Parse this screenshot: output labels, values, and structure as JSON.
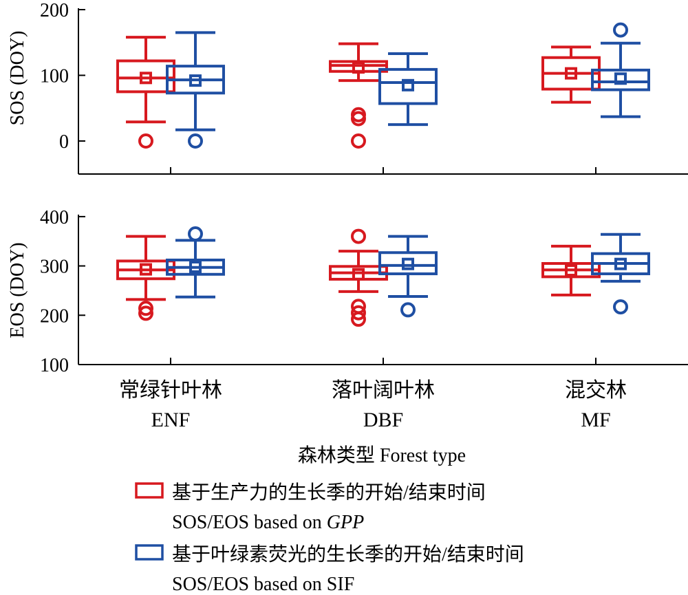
{
  "chart_data": {
    "type": "boxplot",
    "categories": [
      {
        "zh": "常绿针叶林",
        "en": "ENF"
      },
      {
        "zh": "落叶阔叶林",
        "en": "DBF"
      },
      {
        "zh": "混交林",
        "en": "MF"
      }
    ],
    "xlabel": "森林类型 Forest type",
    "colors": {
      "GPP": "#d7191f",
      "SIF": "#1f4fa3"
    },
    "panels": [
      {
        "ylabel": "SOS (DOY)",
        "ylim": [
          -50,
          200
        ],
        "yticks": [
          0,
          100,
          200
        ],
        "series": [
          {
            "key": "GPP",
            "boxes": [
              {
                "whisker_low": 29,
                "q1": 75,
                "median": 96,
                "q3": 122,
                "whisker_high": 158,
                "mean": 96,
                "outliers": [
                  0
                ]
              },
              {
                "whisker_low": 92,
                "q1": 106,
                "median": 115,
                "q3": 121,
                "whisker_high": 148,
                "mean": 112,
                "outliers": [
                  0,
                  34,
                  40
                ]
              },
              {
                "whisker_low": 59,
                "q1": 79,
                "median": 103,
                "q3": 127,
                "whisker_high": 143,
                "mean": 103,
                "outliers": []
              }
            ]
          },
          {
            "key": "SIF",
            "boxes": [
              {
                "whisker_low": 17,
                "q1": 73,
                "median": 93,
                "q3": 114,
                "whisker_high": 165,
                "mean": 92,
                "outliers": [
                  0
                ]
              },
              {
                "whisker_low": 25,
                "q1": 57,
                "median": 89,
                "q3": 109,
                "whisker_high": 133,
                "mean": 85,
                "outliers": []
              },
              {
                "whisker_low": 37,
                "q1": 78,
                "median": 90,
                "q3": 108,
                "whisker_high": 149,
                "mean": 95,
                "outliers": [
                  169
                ]
              }
            ]
          }
        ]
      },
      {
        "ylabel": "EOS (DOY)",
        "ylim": [
          100,
          400
        ],
        "yticks": [
          100,
          200,
          300,
          400
        ],
        "series": [
          {
            "key": "GPP",
            "boxes": [
              {
                "whisker_low": 232,
                "q1": 274,
                "median": 292,
                "q3": 310,
                "whisker_high": 360,
                "mean": 293,
                "outliers": [
                  204,
                  214
                ]
              },
              {
                "whisker_low": 248,
                "q1": 273,
                "median": 286,
                "q3": 299,
                "whisker_high": 330,
                "mean": 283,
                "outliers": [
                  192,
                  205,
                  218,
                  360
                ]
              },
              {
                "whisker_low": 241,
                "q1": 278,
                "median": 292,
                "q3": 305,
                "whisker_high": 340,
                "mean": 291,
                "outliers": []
              }
            ]
          },
          {
            "key": "SIF",
            "boxes": [
              {
                "whisker_low": 237,
                "q1": 283,
                "median": 297,
                "q3": 312,
                "whisker_high": 352,
                "mean": 298,
                "outliers": [
                  365
                ]
              },
              {
                "whisker_low": 238,
                "q1": 284,
                "median": 301,
                "q3": 327,
                "whisker_high": 360,
                "mean": 304,
                "outliers": [
                  211
                ]
              },
              {
                "whisker_low": 269,
                "q1": 284,
                "median": 305,
                "q3": 325,
                "whisker_high": 364,
                "mean": 304,
                "outliers": [
                  217
                ]
              }
            ]
          }
        ]
      }
    ],
    "legend": [
      {
        "key": "GPP",
        "zh": "基于生产力的生长季的开始/结束时间",
        "en_prefix": "SOS/EOS based on ",
        "en_italic": "GPP"
      },
      {
        "key": "SIF",
        "zh": "基于叶绿素荧光的生长季的开始/结束时间",
        "en_prefix": "SOS/EOS based on SIF",
        "en_italic": ""
      }
    ]
  }
}
